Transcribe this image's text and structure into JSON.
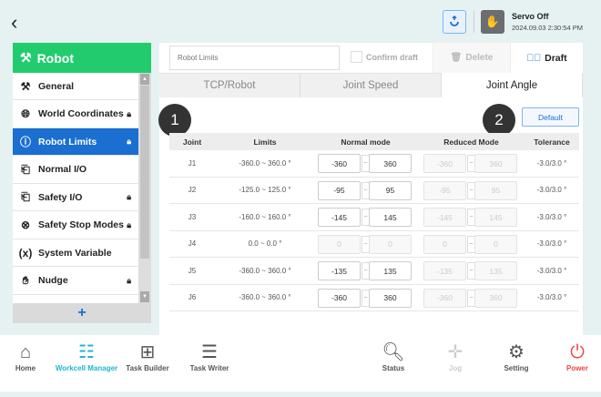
{
  "header": {
    "servo_status": "Servo Off",
    "datetime": "2024.09.03 2:30:54 PM"
  },
  "sidebar": {
    "title": "Robot",
    "items": [
      {
        "label": "General",
        "icon": "robot-arm-icon",
        "locked": false
      },
      {
        "label": "World Coordinates",
        "icon": "globe-icon",
        "locked": true
      },
      {
        "label": "Robot Limits",
        "icon": "info-icon",
        "locked": true,
        "selected": true
      },
      {
        "label": "Normal I/O",
        "icon": "io-icon",
        "locked": false
      },
      {
        "label": "Safety I/O",
        "icon": "io-icon",
        "locked": true
      },
      {
        "label": "Safety Stop Modes",
        "icon": "stop-circle-icon",
        "locked": true
      },
      {
        "label": "System Variable",
        "icon": "variable-icon",
        "locked": false
      },
      {
        "label": "Nudge",
        "icon": "hand-icon",
        "locked": true
      }
    ],
    "add_label": "+"
  },
  "toolbar": {
    "search_placeholder": "Robot Limits",
    "confirm_label": "Confirm draft",
    "delete_label": "Delete",
    "draft_label": "Draft"
  },
  "tabs": [
    {
      "label": "TCP/Robot"
    },
    {
      "label": "Joint Speed"
    },
    {
      "label": "Joint Angle",
      "active": true
    }
  ],
  "badges": [
    "1",
    "2"
  ],
  "default_label": "Default",
  "table": {
    "headers": [
      "Joint",
      "Limits",
      "Normal mode",
      "Reduced Mode",
      "Tolerance"
    ],
    "tilde": "~",
    "rows": [
      {
        "joint": "J1",
        "limits": "-360.0 ~ 360.0 °",
        "n_min": "-360",
        "n_max": "360",
        "r_min": "-360",
        "r_max": "360",
        "tol": "-3.0/3.0 °",
        "normal_enabled": true
      },
      {
        "joint": "J2",
        "limits": "-125.0 ~ 125.0 °",
        "n_min": "-95",
        "n_max": "95",
        "r_min": "-95",
        "r_max": "95",
        "tol": "-3.0/3.0 °",
        "normal_enabled": true
      },
      {
        "joint": "J3",
        "limits": "-160.0 ~ 160.0 °",
        "n_min": "-145",
        "n_max": "145",
        "r_min": "-145",
        "r_max": "145",
        "tol": "-3.0/3.0 °",
        "normal_enabled": true
      },
      {
        "joint": "J4",
        "limits": "0.0 ~ 0.0 °",
        "n_min": "0",
        "n_max": "0",
        "r_min": "0",
        "r_max": "0",
        "tol": "-3.0/3.0 °",
        "normal_enabled": false
      },
      {
        "joint": "J5",
        "limits": "-360.0 ~ 360.0 °",
        "n_min": "-135",
        "n_max": "135",
        "r_min": "-135",
        "r_max": "135",
        "tol": "-3.0/3.0 °",
        "normal_enabled": true
      },
      {
        "joint": "J6",
        "limits": "-360.0 ~ 360.0 °",
        "n_min": "-360",
        "n_max": "360",
        "r_min": "-360",
        "r_max": "360",
        "tol": "-3.0/3.0 °",
        "normal_enabled": true
      }
    ]
  },
  "nav": {
    "left": [
      {
        "label": "Home",
        "icon": "home-icon"
      },
      {
        "label": "Workcell Manager",
        "icon": "workcell-icon",
        "active": true
      },
      {
        "label": "Task Builder",
        "icon": "task-builder-icon"
      },
      {
        "label": "Task Writer",
        "icon": "task-writer-icon"
      }
    ],
    "right": [
      {
        "label": "Status",
        "icon": "status-icon"
      },
      {
        "label": "Jog",
        "icon": "jog-icon",
        "disabled": true
      },
      {
        "label": "Setting",
        "icon": "gear-icon"
      },
      {
        "label": "Power",
        "icon": "power-icon"
      }
    ]
  },
  "colors": {
    "accent": "#1a6fd0",
    "robot_header": "#22cc6e",
    "active_nav": "#1fb5d0",
    "power": "#f04444"
  }
}
